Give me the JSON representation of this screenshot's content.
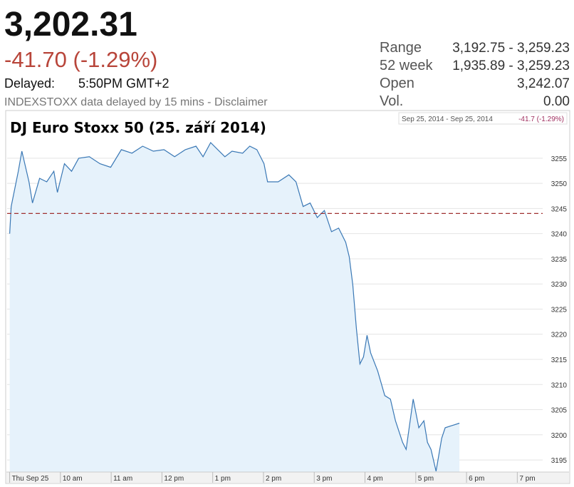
{
  "quote": {
    "price": "3,202.31",
    "change": "-41.70 (-1.29%)",
    "delayed_label": "Delayed:",
    "delayed_time": "5:50PM GMT+2",
    "note": "INDEXSTOXX data delayed by 15 mins - Disclaimer",
    "stats": [
      {
        "label": "Range",
        "value": "3,192.75 - 3,259.23"
      },
      {
        "label": "52 week",
        "value": "1,935.89 - 3,259.23"
      },
      {
        "label": "Open",
        "value": "3,242.07"
      },
      {
        "label": "Vol.",
        "value": "0.00"
      }
    ]
  },
  "chart_data": {
    "type": "area",
    "title": "DJ Euro Stoxx 50 (25. září 2014)",
    "legend_text": "Sep 25, 2014  -  Sep 25, 2014",
    "legend_change": "-41.7 (-1.29%)",
    "xlim": [
      8.95,
      19.5
    ],
    "ylim": [
      3192.6,
      3264.2
    ],
    "xticks": [
      {
        "value": 9,
        "label": "Thu Sep 25"
      },
      {
        "value": 10,
        "label": "10 am"
      },
      {
        "value": 11,
        "label": "11 am"
      },
      {
        "value": 12,
        "label": "12 pm"
      },
      {
        "value": 13,
        "label": "1 pm"
      },
      {
        "value": 14,
        "label": "2 pm"
      },
      {
        "value": 15,
        "label": "3 pm"
      },
      {
        "value": 16,
        "label": "4 pm"
      },
      {
        "value": 17,
        "label": "5 pm"
      },
      {
        "value": 18,
        "label": "6 pm"
      },
      {
        "value": 19,
        "label": "7 pm"
      }
    ],
    "yticks": [
      3195,
      3200,
      3205,
      3210,
      3215,
      3220,
      3225,
      3230,
      3235,
      3240,
      3245,
      3250,
      3255
    ],
    "grid": true,
    "reference_line": {
      "value": 3244.01,
      "color": "#a03030"
    },
    "series": [
      {
        "color": "#3a78b5",
        "fill": "#e6f2fb",
        "x": [
          9.0,
          9.03,
          9.17,
          9.24,
          9.38,
          9.45,
          9.59,
          9.73,
          9.87,
          9.94,
          10.08,
          10.22,
          10.36,
          10.57,
          10.78,
          10.99,
          11.2,
          11.41,
          11.62,
          11.83,
          12.04,
          12.25,
          12.46,
          12.67,
          12.81,
          12.96,
          13.1,
          13.24,
          13.38,
          13.59,
          13.73,
          13.87,
          14.01,
          14.08,
          14.29,
          14.5,
          14.64,
          14.78,
          14.92,
          15.06,
          15.2,
          15.34,
          15.48,
          15.62,
          15.69,
          15.76,
          15.83,
          15.9,
          15.97,
          16.04,
          16.11,
          16.25,
          16.39,
          16.5,
          16.6,
          16.74,
          16.81,
          16.95,
          17.06,
          17.16,
          17.23,
          17.3,
          17.4,
          17.51,
          17.58,
          17.86
        ],
        "values": [
          3240,
          3245.4,
          3252.4,
          3256.4,
          3250.3,
          3246.1,
          3251,
          3250.3,
          3252.4,
          3248.2,
          3253.9,
          3252.4,
          3255,
          3255.3,
          3253.9,
          3253.2,
          3256.7,
          3256,
          3257.4,
          3256.4,
          3256.7,
          3255.3,
          3256.7,
          3257.4,
          3255.3,
          3258.1,
          3256.7,
          3255.3,
          3256.4,
          3256,
          3257.4,
          3256.7,
          3253.9,
          3250.3,
          3250.3,
          3251.7,
          3250.3,
          3245.4,
          3246.1,
          3243.2,
          3244.6,
          3240.4,
          3241.1,
          3238.3,
          3235.4,
          3229.8,
          3221.2,
          3214.1,
          3215.5,
          3219.8,
          3216.3,
          3212.7,
          3207.8,
          3207.1,
          3202.8,
          3198.5,
          3197.1,
          3207.1,
          3201.4,
          3202.8,
          3198.5,
          3197.1,
          3192.75,
          3199.3,
          3201.4,
          3202.31
        ]
      }
    ]
  }
}
